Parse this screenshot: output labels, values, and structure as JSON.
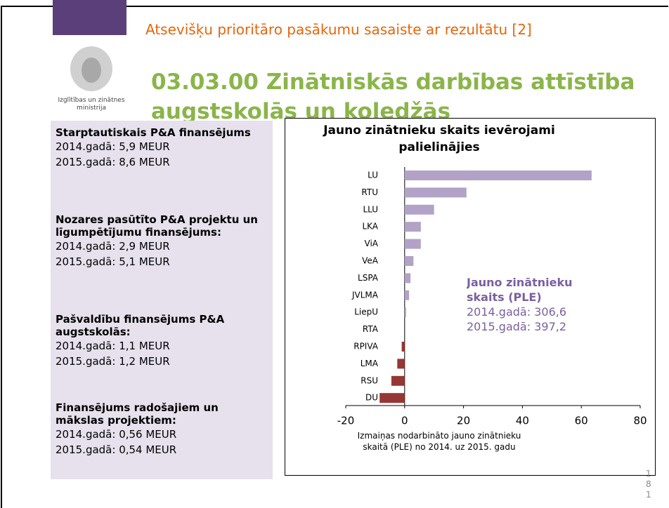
{
  "header": {
    "subtitle": "Atsevišķu prioritāro pasākumu sasaiste ar rezultātu [2]",
    "title": "03.03.00 Zinātniskās darbības attīstība augstskolās un koledžās",
    "logo_text": "Izglītības un zinātnes ministrija"
  },
  "panel": [
    {
      "heading": "Starptautiskais P&A finansējums",
      "lines": [
        "2014.gadā: 5,9 MEUR",
        "2015.gadā: 8,6 MEUR"
      ]
    },
    {
      "heading": "Nozares pasūtīto P&A projektu un līgumpētījumu finansējums:",
      "lines": [
        "2014.gadā: 2,9 MEUR",
        "2015.gadā: 5,1 MEUR"
      ]
    },
    {
      "heading": "Pašvaldību finansējums P&A augstskolās:",
      "lines": [
        "2014.gadā: 1,1 MEUR",
        "2015.gadā: 1,2 MEUR"
      ]
    },
    {
      "heading": "Finansējums radošajiem un mākslas projektiem:",
      "lines": [
        "2014.gadā: 0,56 MEUR",
        "2015.gadā: 0,54 MEUR"
      ]
    }
  ],
  "chart_data": {
    "type": "bar",
    "orientation": "horizontal",
    "title": "Jauno zinātnieku skaits ievērojami palielinājies",
    "x_label": "Izmaiņas nodarbināto jauno zinātnieku skaitā (PLE) no 2014. uz 2015. gadu",
    "categories": [
      "LU",
      "RTU",
      "LLU",
      "LKA",
      "ViA",
      "VeA",
      "LSPA",
      "JVLMA",
      "LiepU",
      "RTA",
      "RPIVA",
      "LMA",
      "RSU",
      "DU"
    ],
    "values": [
      63.5,
      21,
      10,
      5.5,
      5.5,
      3,
      2,
      1.5,
      0.5,
      0,
      -1,
      -2.5,
      -4.5,
      -8.5
    ],
    "color_positive": "#b3a2c7",
    "color_negative": "#953735",
    "xlim": [
      -20,
      80
    ],
    "xticks": [
      -20,
      0,
      20,
      40,
      60,
      80
    ],
    "annotation": {
      "title": "Jauno zinātnieku skaits (PLE)",
      "lines": [
        "2014.gadā: 306,6",
        "2015.gadā: 397,2"
      ]
    }
  },
  "page_number": "181"
}
